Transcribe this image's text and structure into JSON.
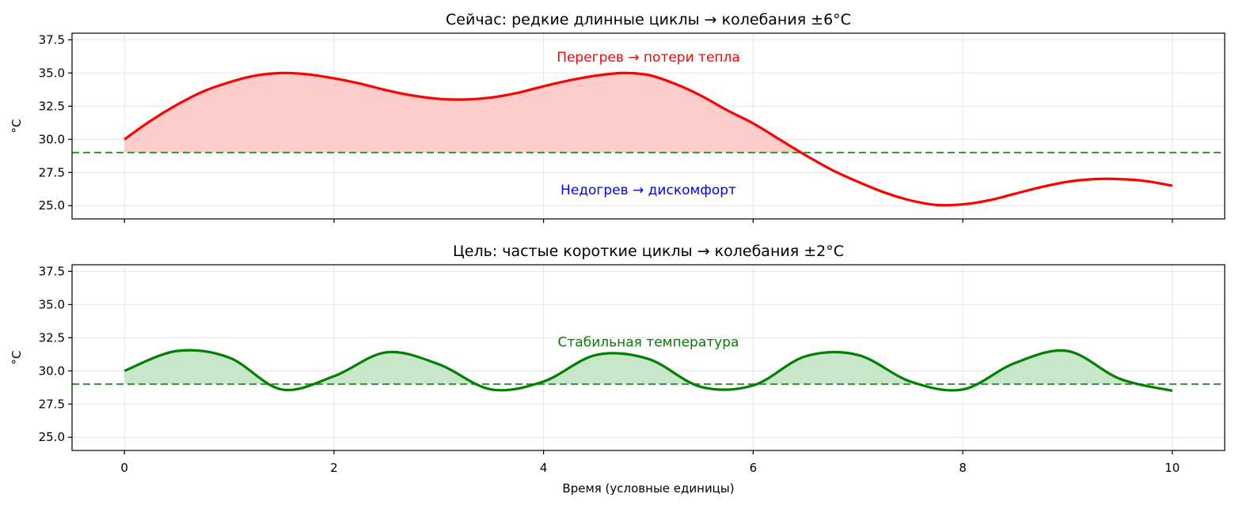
{
  "chart_data": [
    {
      "type": "line",
      "title": "Сейчас: редкие длинные циклы → колебания ±6°C",
      "ylabel": "°C",
      "xlabel": "",
      "xlim": [
        -0.5,
        10.5
      ],
      "ylim": [
        24.0,
        38.0
      ],
      "yticks": [
        "25.0",
        "27.5",
        "30.0",
        "32.5",
        "35.0",
        "37.5"
      ],
      "xticks": [
        0,
        2,
        4,
        6,
        8,
        10
      ],
      "show_xtick_labels": false,
      "grid": true,
      "line_color": "#ff0000",
      "fill_color": "#ffcccc",
      "setpoint": 29,
      "setpoint_color": "#3a9a3a",
      "series": [
        {
          "x": [
            0,
            0.25,
            0.5,
            0.75,
            1.0,
            1.25,
            1.5,
            1.75,
            2.0,
            2.25,
            2.5,
            2.75,
            3.0,
            3.25,
            3.5,
            3.75,
            4.0,
            4.25,
            4.5,
            4.75,
            5.0,
            5.25,
            5.5,
            5.75,
            6.0,
            6.25,
            6.5,
            6.75,
            7.0,
            7.25,
            7.5,
            7.75,
            8.0,
            8.25,
            8.5,
            8.75,
            9.0,
            9.25,
            9.5,
            9.75,
            10.0
          ],
          "y": [
            30.0,
            31.4,
            32.6,
            33.6,
            34.3,
            34.8,
            35.0,
            34.9,
            34.6,
            34.2,
            33.7,
            33.3,
            33.05,
            33.0,
            33.15,
            33.5,
            34.0,
            34.45,
            34.8,
            35.0,
            34.85,
            34.2,
            33.3,
            32.2,
            31.2,
            30.0,
            28.8,
            27.7,
            26.8,
            26.0,
            25.4,
            25.05,
            25.1,
            25.4,
            25.9,
            26.4,
            26.8,
            27.0,
            27.0,
            26.85,
            26.5
          ]
        }
      ],
      "annotations": [
        {
          "text": "Перегрев → потери тепла",
          "x": 5.0,
          "y": 36.2,
          "color": "#ff0000"
        },
        {
          "text": "Недогрев → дискомфорт",
          "x": 5.0,
          "y": 26.2,
          "color": "#0000ff"
        }
      ]
    },
    {
      "type": "line",
      "title": "Цель: частые короткие циклы → колебания ±2°C",
      "ylabel": "°C",
      "xlabel": "Время (условные единицы)",
      "xlim": [
        -0.5,
        10.5
      ],
      "ylim": [
        24.0,
        38.0
      ],
      "yticks": [
        "25.0",
        "27.5",
        "30.0",
        "32.5",
        "35.0",
        "37.5"
      ],
      "xticks": [
        0,
        2,
        4,
        6,
        8,
        10
      ],
      "show_xtick_labels": true,
      "grid": true,
      "line_color": "#008000",
      "fill_color": "#c8e6c8",
      "setpoint": 29,
      "setpoint_color": "#3a9a3a",
      "series": [
        {
          "x": [
            0,
            0.5,
            1.0,
            1.5,
            2.0,
            2.5,
            3.0,
            3.5,
            4.0,
            4.5,
            5.0,
            5.5,
            6.0,
            6.5,
            7.0,
            7.5,
            8.0,
            8.5,
            9.0,
            9.5,
            10.0
          ],
          "y": [
            30.0,
            31.5,
            31.0,
            28.6,
            29.6,
            31.4,
            30.5,
            28.6,
            29.2,
            31.2,
            30.9,
            28.8,
            28.9,
            31.1,
            31.2,
            29.2,
            28.6,
            30.6,
            31.5,
            29.4,
            28.5
          ]
        }
      ],
      "annotations": [
        {
          "text": "Стабильная температура",
          "x": 5.0,
          "y": 32.2,
          "color": "#008000"
        }
      ]
    }
  ]
}
